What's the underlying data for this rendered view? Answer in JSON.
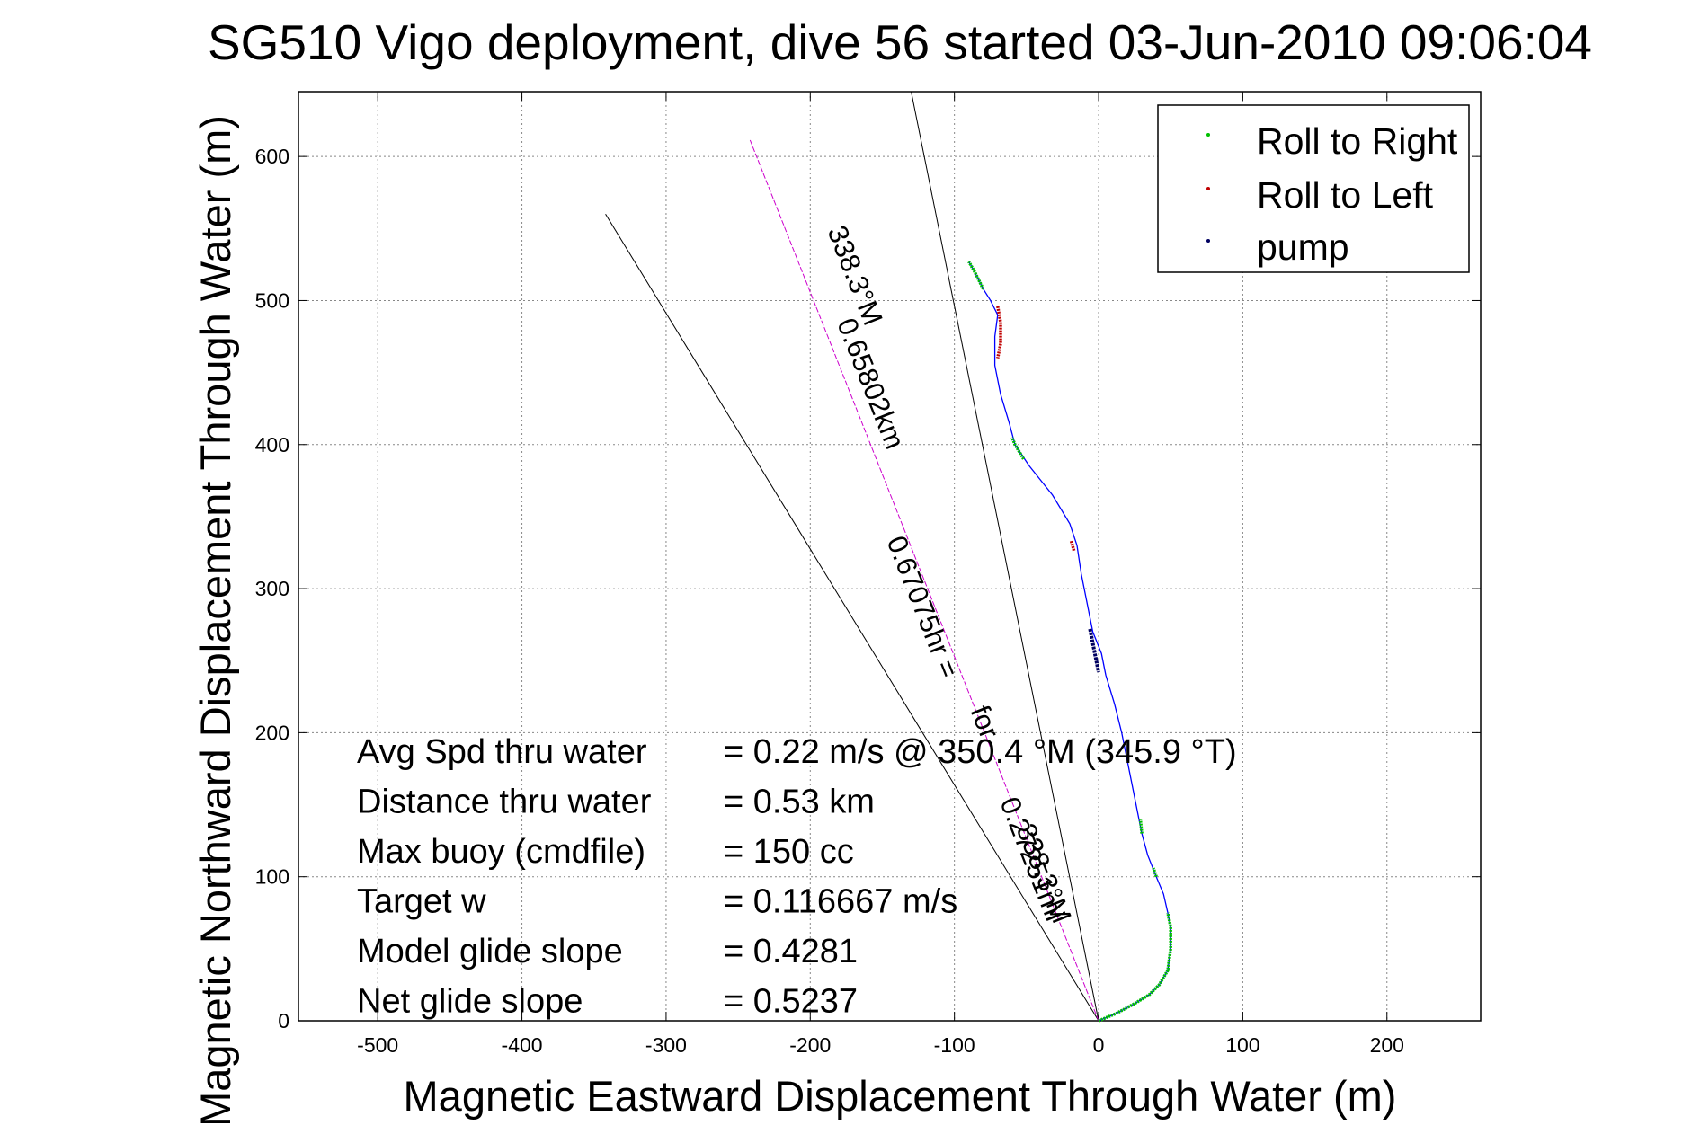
{
  "chart_data": {
    "type": "line",
    "title": "SG510 Vigo deployment, dive 56 started 03-Jun-2010 09:06:04",
    "xlabel": "Magnetic Eastward Displacement Through Water (m)",
    "ylabel": "Magnetic Northward Displacement Through Water (m)",
    "xlim": [
      -555,
      265
    ],
    "ylim": [
      0,
      645
    ],
    "xticks": [
      -500,
      -400,
      -300,
      -200,
      -100,
      0,
      100,
      200
    ],
    "yticks": [
      0,
      100,
      200,
      300,
      400,
      500,
      600
    ],
    "xtick_labels": [
      "-500",
      "-400",
      "-300",
      "-200",
      "-100",
      "0",
      "100",
      "200"
    ],
    "ytick_labels": [
      "0",
      "100",
      "200",
      "300",
      "400",
      "500",
      "600"
    ],
    "grid": true,
    "legend_position": "top-right",
    "legend": [
      {
        "label": "Roll to Right",
        "color": "#00c000"
      },
      {
        "label": "Roll to Left",
        "color": "#c00000"
      },
      {
        "label": "pump",
        "color": "#000060"
      }
    ],
    "track": {
      "color": "#0000ff",
      "points": [
        [
          0,
          0
        ],
        [
          12,
          5
        ],
        [
          25,
          12
        ],
        [
          35,
          18
        ],
        [
          42,
          25
        ],
        [
          48,
          35
        ],
        [
          50,
          50
        ],
        [
          50,
          65
        ],
        [
          48,
          75
        ],
        [
          45,
          88
        ],
        [
          40,
          100
        ],
        [
          34,
          115
        ],
        [
          30,
          130
        ],
        [
          27,
          145
        ],
        [
          24,
          160
        ],
        [
          20,
          180
        ],
        [
          16,
          200
        ],
        [
          11,
          220
        ],
        [
          5,
          240
        ],
        [
          2,
          255
        ],
        [
          -4,
          270
        ],
        [
          -8,
          290
        ],
        [
          -12,
          310
        ],
        [
          -15,
          330
        ],
        [
          -20,
          345
        ],
        [
          -32,
          365
        ],
        [
          -48,
          385
        ],
        [
          -58,
          400
        ],
        [
          -62,
          415
        ],
        [
          -68,
          435
        ],
        [
          -72,
          455
        ],
        [
          -72,
          475
        ],
        [
          -70,
          490
        ],
        [
          -75,
          500
        ],
        [
          -80,
          508
        ],
        [
          -86,
          520
        ],
        [
          -90,
          527
        ]
      ]
    },
    "roll_right_segments": [
      [
        [
          0,
          0
        ],
        [
          12,
          5
        ],
        [
          25,
          12
        ],
        [
          35,
          18
        ],
        [
          42,
          25
        ],
        [
          48,
          35
        ],
        [
          50,
          50
        ],
        [
          50,
          65
        ],
        [
          48,
          75
        ]
      ],
      [
        [
          40,
          100
        ],
        [
          38,
          106
        ]
      ],
      [
        [
          30,
          130
        ],
        [
          29,
          140
        ]
      ],
      [
        [
          -52,
          390
        ],
        [
          -58,
          400
        ],
        [
          -60,
          405
        ]
      ],
      [
        [
          -80,
          508
        ],
        [
          -86,
          520
        ],
        [
          -90,
          527
        ]
      ]
    ],
    "roll_left_segments": [
      [
        [
          -19,
          333
        ],
        [
          -17,
          326
        ]
      ],
      [
        [
          -70,
          496
        ],
        [
          -68,
          485
        ],
        [
          -68,
          470
        ],
        [
          -70,
          460
        ]
      ]
    ],
    "pump_segment": [
      [
        -6,
        272
      ],
      [
        -4,
        262
      ],
      [
        -2,
        252
      ],
      [
        0,
        242
      ]
    ],
    "heading_lines": [
      {
        "from": [
          0,
          0
        ],
        "to": [
          -342,
          560
        ],
        "color": "#000000"
      },
      {
        "from": [
          0,
          0
        ],
        "to": [
          -130,
          645
        ],
        "color": "#000000"
      },
      {
        "from": [
          0,
          0
        ],
        "to": [
          -242,
          612
        ],
        "color": "#cc00cc",
        "dashed": true
      }
    ],
    "annotations": {
      "long_dist": "0.65802km",
      "long_time": "0.67075hr =",
      "long_heading": "338.3°M",
      "short_dist": "0.27251mi",
      "short_for": "for",
      "short_heading": "338.3°M"
    },
    "stats": [
      {
        "label": "Avg Spd thru water",
        "value": "=  0.22 m/s @ 350.4 °M (345.9 °T)"
      },
      {
        "label": "Distance thru water",
        "value": "=  0.53 km"
      },
      {
        "label": "Max buoy (cmdfile)",
        "value": "= 150 cc"
      },
      {
        "label": "Target w",
        "value": "= 0.116667 m/s"
      },
      {
        "label": "Model glide slope",
        "value": "= 0.4281"
      },
      {
        "label": "Net glide slope",
        "value": "= 0.5237"
      }
    ]
  }
}
